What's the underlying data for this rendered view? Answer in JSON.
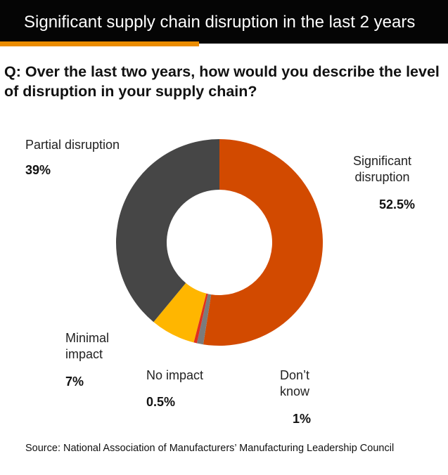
{
  "header": {
    "title": "Significant supply chain disruption in the last 2 years",
    "accent_color": "#eb8c00"
  },
  "question": "Q: Over the last two years, how would you describe the level of disruption in your supply chain?",
  "chart_data": {
    "type": "pie",
    "variant": "donut",
    "title": "",
    "slices": [
      {
        "name": "Significant disruption",
        "label_lines": [
          "Significant",
          "disruption"
        ],
        "value": 52.5,
        "display": "52.5%",
        "color": "#d24a00"
      },
      {
        "name": "Don't know",
        "label_lines": [
          "Don’t",
          "know"
        ],
        "value": 1,
        "display": "1%",
        "color": "#7b7b7b"
      },
      {
        "name": "No impact",
        "label_lines": [
          "No impact"
        ],
        "value": 0.5,
        "display": "0.5%",
        "color": "#e0301e"
      },
      {
        "name": "Minimal impact",
        "label_lines": [
          "Minimal",
          "impact"
        ],
        "value": 7,
        "display": "7%",
        "color": "#ffb600"
      },
      {
        "name": "Partial disruption",
        "label_lines": [
          "Partial disruption"
        ],
        "value": 39,
        "display": "39%",
        "color": "#464646"
      }
    ]
  },
  "source": "Source: National Association of Manufacturers’ Manufacturing Leadership Council"
}
